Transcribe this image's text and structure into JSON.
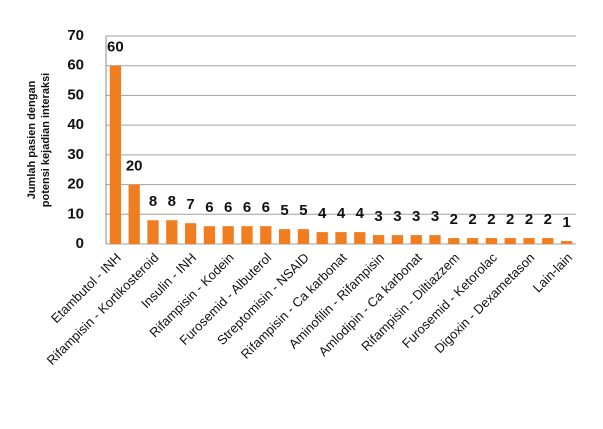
{
  "chart_data": {
    "type": "bar",
    "y_label": [
      "Jumlah pasien dengan",
      "potensi kejadian interaksi"
    ],
    "categories": [
      "Etambutol - INH",
      null,
      "Rifampisin - Kortikosteroid",
      null,
      "Insulin - INH",
      null,
      "Rifampisin - Kodein",
      null,
      "Furosemid - Albuterol",
      null,
      "Streptomisin - NSAID",
      null,
      "Rifampisin - Ca karbonat",
      null,
      "Aminofilin - Rifampisin",
      null,
      "Amlodipin - Ca karbonat",
      null,
      "Rifampisin - Diltiazzem",
      null,
      "Furosemid - Ketorolac",
      null,
      "Digoxin - Dexametason",
      null,
      "Lain-lain"
    ],
    "values": [
      60,
      20,
      8,
      8,
      7,
      6,
      6,
      6,
      6,
      5,
      5,
      4,
      4,
      4,
      3,
      3,
      3,
      3,
      2,
      2,
      2,
      2,
      2,
      2,
      1
    ],
    "color": "#f07d1f",
    "ylim": [
      0,
      70
    ],
    "yticks": [
      0,
      10,
      20,
      30,
      40,
      50,
      60,
      70
    ],
    "grid": true
  }
}
